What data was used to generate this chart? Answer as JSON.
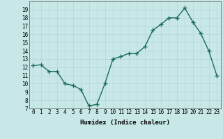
{
  "x": [
    0,
    1,
    2,
    3,
    4,
    5,
    6,
    7,
    8,
    9,
    10,
    11,
    12,
    13,
    14,
    15,
    16,
    17,
    18,
    19,
    20,
    21,
    22,
    23
  ],
  "y": [
    12.2,
    12.3,
    11.5,
    11.5,
    10.0,
    9.8,
    9.3,
    7.3,
    7.5,
    10.0,
    13.0,
    13.3,
    13.7,
    13.7,
    14.5,
    16.5,
    17.2,
    18.0,
    18.0,
    19.2,
    17.5,
    16.1,
    14.0,
    11.0
  ],
  "title": "",
  "xlabel": "Humidex (Indice chaleur)",
  "xlim": [
    -0.5,
    23.5
  ],
  "ylim": [
    7,
    20
  ],
  "yticks": [
    7,
    8,
    9,
    10,
    11,
    12,
    13,
    14,
    15,
    16,
    17,
    18,
    19
  ],
  "xticks": [
    0,
    1,
    2,
    3,
    4,
    5,
    6,
    7,
    8,
    9,
    10,
    11,
    12,
    13,
    14,
    15,
    16,
    17,
    18,
    19,
    20,
    21,
    22,
    23
  ],
  "line_color": "#1a6b5a",
  "bg_color": "#c8e8e8",
  "grid_color": "#b8d4d4"
}
